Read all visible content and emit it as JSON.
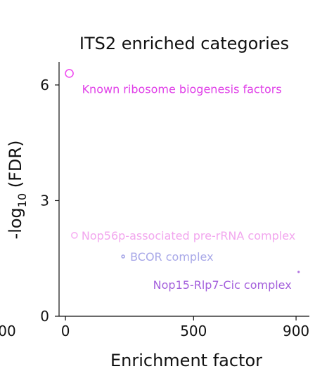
{
  "chart_data": {
    "type": "scatter",
    "title": "ITS2 enriched categories",
    "xlabel": "Enrichment factor",
    "ylabel": {
      "prefix": "-log",
      "sub": "10",
      "suffix": " (FDR)"
    },
    "xlim": [
      -25,
      930
    ],
    "ylim": [
      0,
      6.6
    ],
    "x_ticks": [
      0,
      500,
      900
    ],
    "y_ticks": [
      0,
      3,
      6
    ],
    "clipped_left_tick_label": "00",
    "grid": false,
    "points": [
      {
        "label": "Known ribosome biogenesis factors",
        "x": 15,
        "y": 6.3,
        "size": 11,
        "color": "#f050f0",
        "label_color": "#e040e8"
      },
      {
        "label": "Nop56p-associated pre-rRNA complex",
        "x": 35,
        "y": 2.1,
        "size": 8,
        "color": "#f6b0f2",
        "label_color": "#f2a6ee"
      },
      {
        "label": "BCOR complex",
        "x": 225,
        "y": 1.55,
        "size": 4,
        "color": "#a8a8e8",
        "label_color": "#a8a8e8"
      },
      {
        "label": "Nop15-Rlp7-Cic complex",
        "x": 910,
        "y": 1.15,
        "size": 1.5,
        "color": "#b070e0",
        "label_color": "#a460dc"
      }
    ]
  }
}
